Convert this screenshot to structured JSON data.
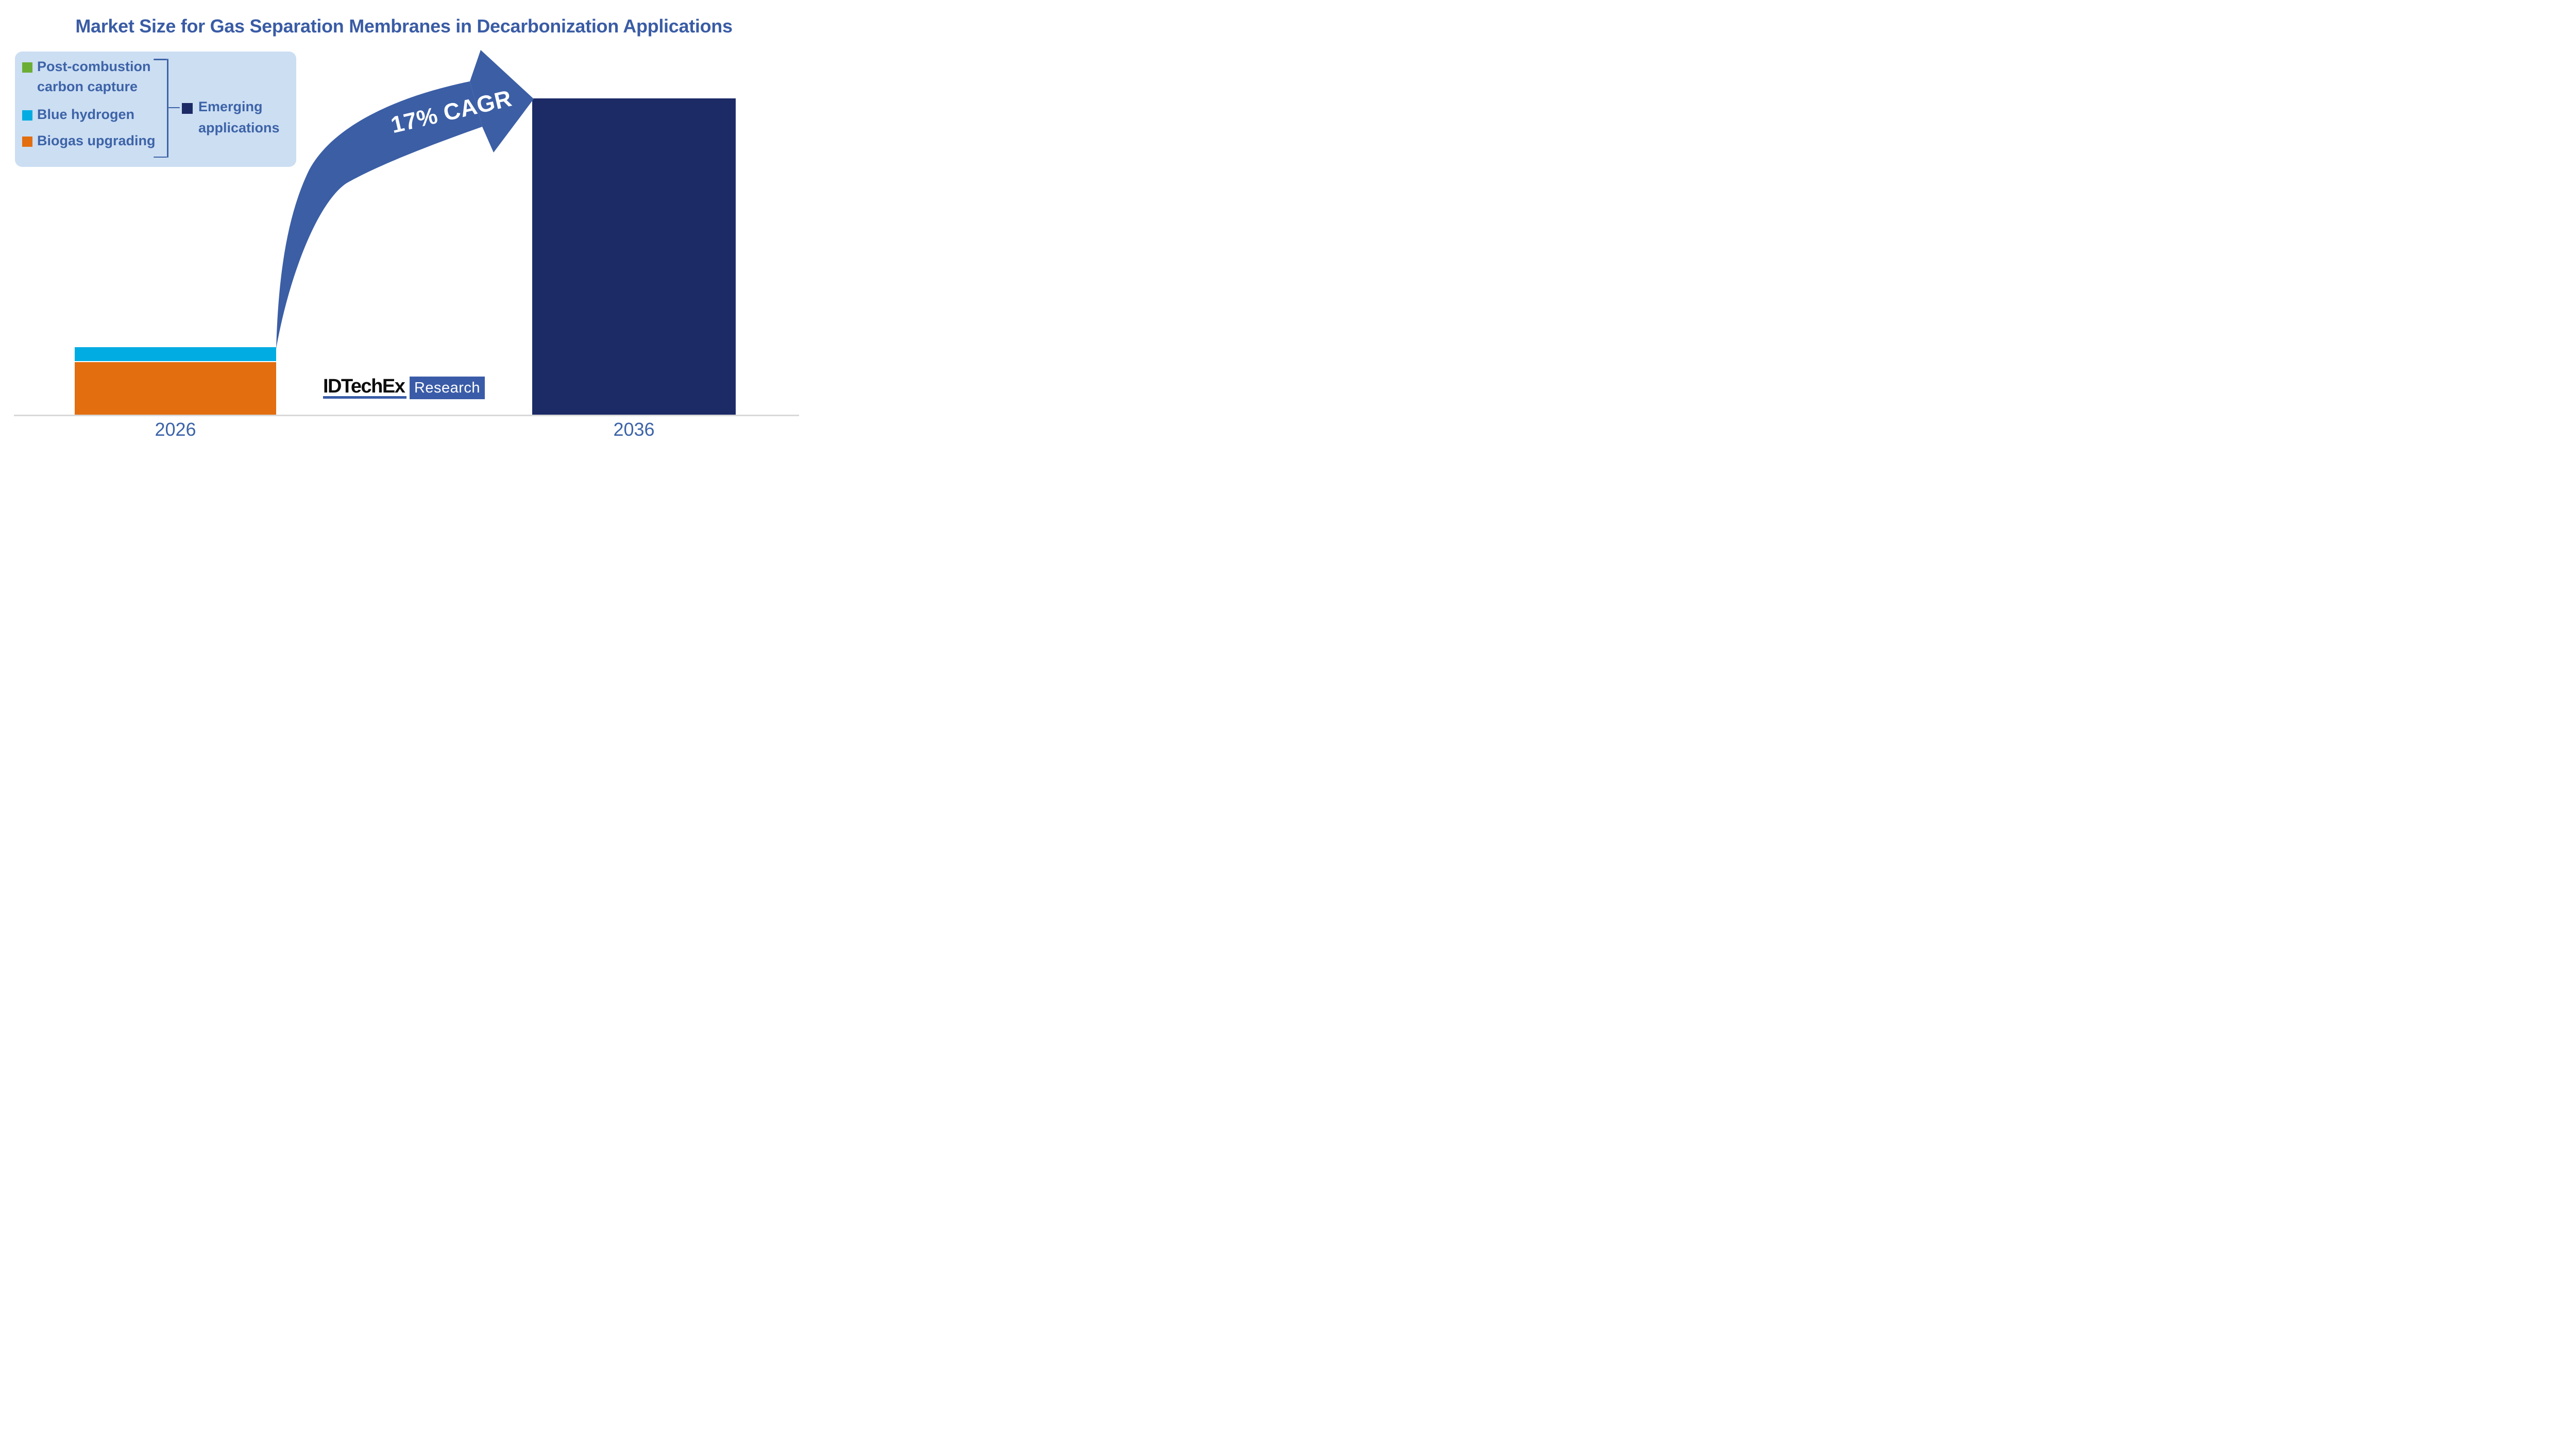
{
  "title": "Market Size for Gas Separation Membranes in Decarbonization Applications",
  "legend": {
    "items": [
      {
        "lines": [
          "Post-combustion",
          "carbon capture"
        ],
        "color": "#6cae35"
      },
      {
        "lines": [
          "Blue hydrogen"
        ],
        "color": "#00ace2"
      },
      {
        "lines": [
          "Biogas upgrading"
        ],
        "color": "#e26e10"
      }
    ],
    "group": {
      "lines": [
        "Emerging",
        "applications"
      ],
      "color": "#1c2a66"
    }
  },
  "arrow": {
    "label": "17% CAGR"
  },
  "axis": {
    "categories": [
      "2026",
      "2036"
    ]
  },
  "logo": {
    "wordmark": "IDTechEx",
    "suffix": "Research"
  },
  "colors": {
    "title_text": "#3a5ca5",
    "legend_text": "#3d63a8",
    "axis_label": "#3d64a8",
    "axis_line": "#d9d9d9",
    "arrow": "#3b5ea5",
    "arrow_text": "#ffffff",
    "legend_bg": "#ccdef2",
    "green": "#6cae35",
    "cyan": "#00ace2",
    "orange": "#e26e10",
    "navy": "#1c2a66",
    "logo_blue": "#3a5ca8",
    "logo_text": "#0d0d0d"
  },
  "chart_data": {
    "type": "bar",
    "stacked": true,
    "categories": [
      "2026",
      "2036"
    ],
    "series": [
      {
        "name": "Biogas upgrading",
        "color": "#e26e10",
        "values": [
          0.79,
          0
        ]
      },
      {
        "name": "Blue hydrogen",
        "color": "#00ace2",
        "values": [
          0.21,
          0
        ]
      },
      {
        "name": "Post-combustion carbon capture",
        "color": "#6cae35",
        "values": [
          0,
          0
        ]
      },
      {
        "name": "Emerging applications",
        "color": "#1c2a66",
        "values": [
          0,
          4.76
        ]
      }
    ],
    "value_scale": "relative market size, 2026 total = 1 (no numeric y-axis shown)",
    "annotation": "17% CAGR",
    "xlabel": "",
    "ylabel": "",
    "gridlines": false,
    "legend_position": "top-left"
  }
}
